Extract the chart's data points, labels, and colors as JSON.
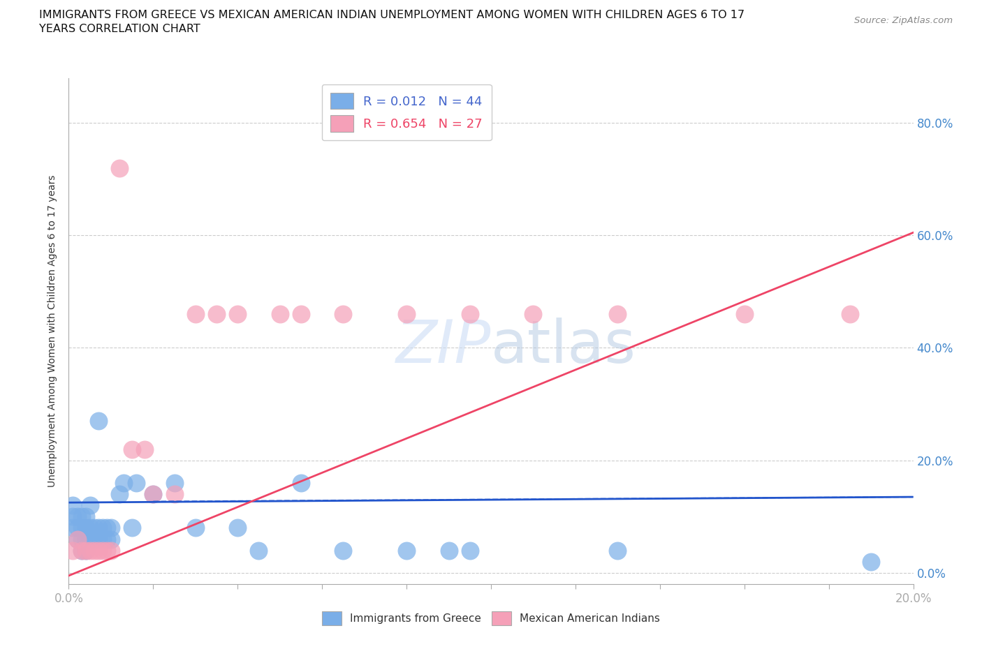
{
  "title": "IMMIGRANTS FROM GREECE VS MEXICAN AMERICAN INDIAN UNEMPLOYMENT AMONG WOMEN WITH CHILDREN AGES 6 TO 17\nYEARS CORRELATION CHART",
  "source": "Source: ZipAtlas.com",
  "ylabel": "Unemployment Among Women with Children Ages 6 to 17 years",
  "xlim": [
    0.0,
    0.2
  ],
  "ylim": [
    -0.02,
    0.88
  ],
  "ytick_vals": [
    0.0,
    0.2,
    0.4,
    0.6,
    0.8
  ],
  "ytick_labels": [
    "0.0%",
    "20.0%",
    "40.0%",
    "60.0%",
    "80.0%"
  ],
  "xtick_vals": [
    0.0,
    0.02,
    0.04,
    0.06,
    0.08,
    0.1,
    0.12,
    0.14,
    0.16,
    0.18,
    0.2
  ],
  "grid_color": "#cccccc",
  "background_color": "#ffffff",
  "blue_R": "0.012",
  "blue_N": "44",
  "pink_R": "0.654",
  "pink_N": "27",
  "blue_color": "#7aaee8",
  "pink_color": "#f5a0b8",
  "blue_line_color": "#2255cc",
  "pink_line_color": "#ee4466",
  "blue_line_x": [
    0.0,
    0.2
  ],
  "blue_line_y": [
    0.125,
    0.135
  ],
  "pink_line_x": [
    0.0,
    0.2
  ],
  "pink_line_y": [
    -0.005,
    0.605
  ],
  "blue_scatter_x": [
    0.001,
    0.001,
    0.001,
    0.002,
    0.002,
    0.002,
    0.003,
    0.003,
    0.003,
    0.003,
    0.004,
    0.004,
    0.004,
    0.004,
    0.005,
    0.005,
    0.005,
    0.006,
    0.006,
    0.007,
    0.007,
    0.007,
    0.008,
    0.008,
    0.009,
    0.009,
    0.01,
    0.01,
    0.012,
    0.013,
    0.015,
    0.016,
    0.02,
    0.025,
    0.03,
    0.04,
    0.045,
    0.055,
    0.065,
    0.08,
    0.09,
    0.095,
    0.13,
    0.19
  ],
  "blue_scatter_y": [
    0.08,
    0.1,
    0.12,
    0.06,
    0.08,
    0.1,
    0.04,
    0.06,
    0.08,
    0.1,
    0.04,
    0.06,
    0.08,
    0.1,
    0.06,
    0.08,
    0.12,
    0.06,
    0.08,
    0.06,
    0.08,
    0.27,
    0.06,
    0.08,
    0.06,
    0.08,
    0.06,
    0.08,
    0.14,
    0.16,
    0.08,
    0.16,
    0.14,
    0.16,
    0.08,
    0.08,
    0.04,
    0.16,
    0.04,
    0.04,
    0.04,
    0.04,
    0.04,
    0.02
  ],
  "pink_scatter_x": [
    0.001,
    0.002,
    0.003,
    0.004,
    0.005,
    0.006,
    0.007,
    0.008,
    0.009,
    0.01,
    0.012,
    0.015,
    0.018,
    0.02,
    0.025,
    0.03,
    0.035,
    0.04,
    0.05,
    0.055,
    0.065,
    0.08,
    0.095,
    0.11,
    0.13,
    0.16,
    0.185
  ],
  "pink_scatter_y": [
    0.04,
    0.06,
    0.04,
    0.04,
    0.04,
    0.04,
    0.04,
    0.04,
    0.04,
    0.04,
    0.72,
    0.22,
    0.22,
    0.14,
    0.14,
    0.46,
    0.46,
    0.46,
    0.46,
    0.46,
    0.46,
    0.46,
    0.46,
    0.46,
    0.46,
    0.46,
    0.46
  ],
  "scatter_size": 350
}
